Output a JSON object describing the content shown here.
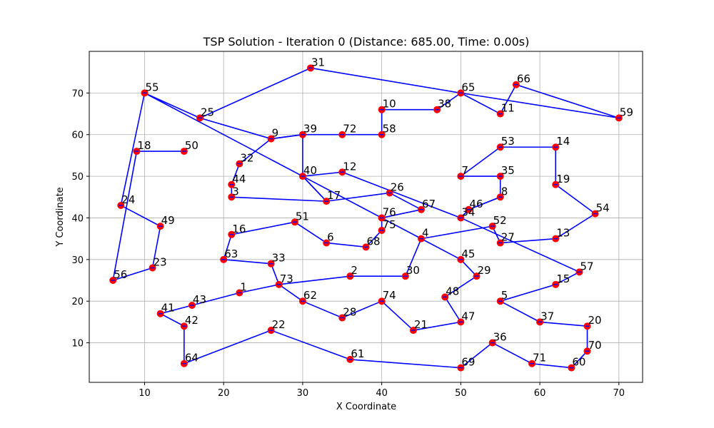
{
  "chart_data": {
    "type": "scatter",
    "title": "TSP Solution - Iteration 0 (Distance: 685.00, Time: 0.00s)",
    "xlabel": "X Coordinate",
    "ylabel": "Y Coordinate",
    "xlim": [
      3,
      73
    ],
    "ylim": [
      0.5,
      80
    ],
    "xticks": [
      10,
      20,
      30,
      40,
      50,
      60,
      70
    ],
    "yticks": [
      10,
      20,
      30,
      40,
      50,
      60,
      70
    ],
    "grid": true,
    "point_color": "#ff0000",
    "route_color": "#0000ff",
    "cities": [
      {
        "id": "1",
        "x": 22,
        "y": 22
      },
      {
        "id": "2",
        "x": 36,
        "y": 26
      },
      {
        "id": "3",
        "x": 21,
        "y": 45
      },
      {
        "id": "4",
        "x": 45,
        "y": 35
      },
      {
        "id": "5",
        "x": 55,
        "y": 20
      },
      {
        "id": "6",
        "x": 33,
        "y": 34
      },
      {
        "id": "7",
        "x": 50,
        "y": 50
      },
      {
        "id": "8",
        "x": 55,
        "y": 45
      },
      {
        "id": "9",
        "x": 26,
        "y": 59
      },
      {
        "id": "10",
        "x": 40,
        "y": 66
      },
      {
        "id": "11",
        "x": 55,
        "y": 65
      },
      {
        "id": "12",
        "x": 35,
        "y": 51
      },
      {
        "id": "13",
        "x": 62,
        "y": 35
      },
      {
        "id": "14",
        "x": 62,
        "y": 57
      },
      {
        "id": "15",
        "x": 62,
        "y": 24
      },
      {
        "id": "16",
        "x": 21,
        "y": 36
      },
      {
        "id": "17",
        "x": 33,
        "y": 44
      },
      {
        "id": "18",
        "x": 9,
        "y": 56
      },
      {
        "id": "19",
        "x": 62,
        "y": 48
      },
      {
        "id": "20",
        "x": 66,
        "y": 14
      },
      {
        "id": "21",
        "x": 44,
        "y": 13
      },
      {
        "id": "22",
        "x": 26,
        "y": 13
      },
      {
        "id": "23",
        "x": 11,
        "y": 28
      },
      {
        "id": "24",
        "x": 7,
        "y": 43
      },
      {
        "id": "25",
        "x": 17,
        "y": 64
      },
      {
        "id": "26",
        "x": 41,
        "y": 46
      },
      {
        "id": "27",
        "x": 55,
        "y": 34
      },
      {
        "id": "28",
        "x": 35,
        "y": 16
      },
      {
        "id": "29",
        "x": 52,
        "y": 26
      },
      {
        "id": "30",
        "x": 43,
        "y": 26
      },
      {
        "id": "31",
        "x": 31,
        "y": 76
      },
      {
        "id": "32",
        "x": 22,
        "y": 53
      },
      {
        "id": "33",
        "x": 26,
        "y": 29
      },
      {
        "id": "34",
        "x": 50,
        "y": 40
      },
      {
        "id": "35",
        "x": 55,
        "y": 50
      },
      {
        "id": "36",
        "x": 54,
        "y": 10
      },
      {
        "id": "37",
        "x": 60,
        "y": 15
      },
      {
        "id": "38",
        "x": 47,
        "y": 66
      },
      {
        "id": "39",
        "x": 30,
        "y": 60
      },
      {
        "id": "40",
        "x": 30,
        "y": 50
      },
      {
        "id": "41",
        "x": 12,
        "y": 17
      },
      {
        "id": "42",
        "x": 15,
        "y": 14
      },
      {
        "id": "43",
        "x": 16,
        "y": 19
      },
      {
        "id": "44",
        "x": 21,
        "y": 48
      },
      {
        "id": "45",
        "x": 50,
        "y": 30
      },
      {
        "id": "46",
        "x": 51,
        "y": 42
      },
      {
        "id": "47",
        "x": 50,
        "y": 15
      },
      {
        "id": "48",
        "x": 48,
        "y": 21
      },
      {
        "id": "49",
        "x": 12,
        "y": 38
      },
      {
        "id": "50",
        "x": 15,
        "y": 56
      },
      {
        "id": "51",
        "x": 29,
        "y": 39
      },
      {
        "id": "52",
        "x": 54,
        "y": 38
      },
      {
        "id": "53",
        "x": 55,
        "y": 57
      },
      {
        "id": "54",
        "x": 67,
        "y": 41
      },
      {
        "id": "55",
        "x": 10,
        "y": 70
      },
      {
        "id": "56",
        "x": 6,
        "y": 25
      },
      {
        "id": "57",
        "x": 65,
        "y": 27
      },
      {
        "id": "58",
        "x": 40,
        "y": 60
      },
      {
        "id": "59",
        "x": 70,
        "y": 64
      },
      {
        "id": "60",
        "x": 64,
        "y": 4
      },
      {
        "id": "61",
        "x": 36,
        "y": 6
      },
      {
        "id": "62",
        "x": 30,
        "y": 20
      },
      {
        "id": "63",
        "x": 20,
        "y": 30
      },
      {
        "id": "64",
        "x": 15,
        "y": 5
      },
      {
        "id": "65",
        "x": 50,
        "y": 70
      },
      {
        "id": "66",
        "x": 57,
        "y": 72
      },
      {
        "id": "67",
        "x": 45,
        "y": 42
      },
      {
        "id": "68",
        "x": 38,
        "y": 33
      },
      {
        "id": "69",
        "x": 50,
        "y": 4
      },
      {
        "id": "70",
        "x": 66,
        "y": 8
      },
      {
        "id": "71",
        "x": 59,
        "y": 5
      },
      {
        "id": "72",
        "x": 35,
        "y": 60
      },
      {
        "id": "73",
        "x": 27,
        "y": 24
      },
      {
        "id": "74",
        "x": 40,
        "y": 20
      },
      {
        "id": "75",
        "x": 40,
        "y": 37
      },
      {
        "id": "76",
        "x": 40,
        "y": 40
      }
    ],
    "route": [
      "31",
      "65",
      "11",
      "66",
      "59",
      "65",
      "38",
      "10",
      "58",
      "72",
      "39",
      "9",
      "25",
      "55",
      "76",
      "4",
      "52",
      "27",
      "13",
      "54",
      "19",
      "14",
      "53",
      "7",
      "35",
      "8",
      "46",
      "34",
      "12",
      "40",
      "17",
      "3",
      "44",
      "32",
      "9",
      "39",
      "40",
      "17",
      "26",
      "67",
      "76",
      "75",
      "68",
      "6",
      "51",
      "16",
      "63",
      "33",
      "73",
      "2",
      "30",
      "4",
      "45",
      "29",
      "48",
      "47",
      "21",
      "74",
      "28",
      "62",
      "73",
      "1",
      "43",
      "41",
      "42",
      "64",
      "22",
      "61",
      "69",
      "36",
      "71",
      "60",
      "70",
      "20",
      "37",
      "5",
      "15",
      "57",
      "34",
      "46",
      "8"
    ],
    "extra_segments": [
      [
        "18",
        "50"
      ],
      [
        "18",
        "56"
      ],
      [
        "56",
        "23"
      ],
      [
        "23",
        "49"
      ],
      [
        "49",
        "24"
      ],
      [
        "24",
        "55"
      ],
      [
        "25",
        "31"
      ]
    ]
  }
}
